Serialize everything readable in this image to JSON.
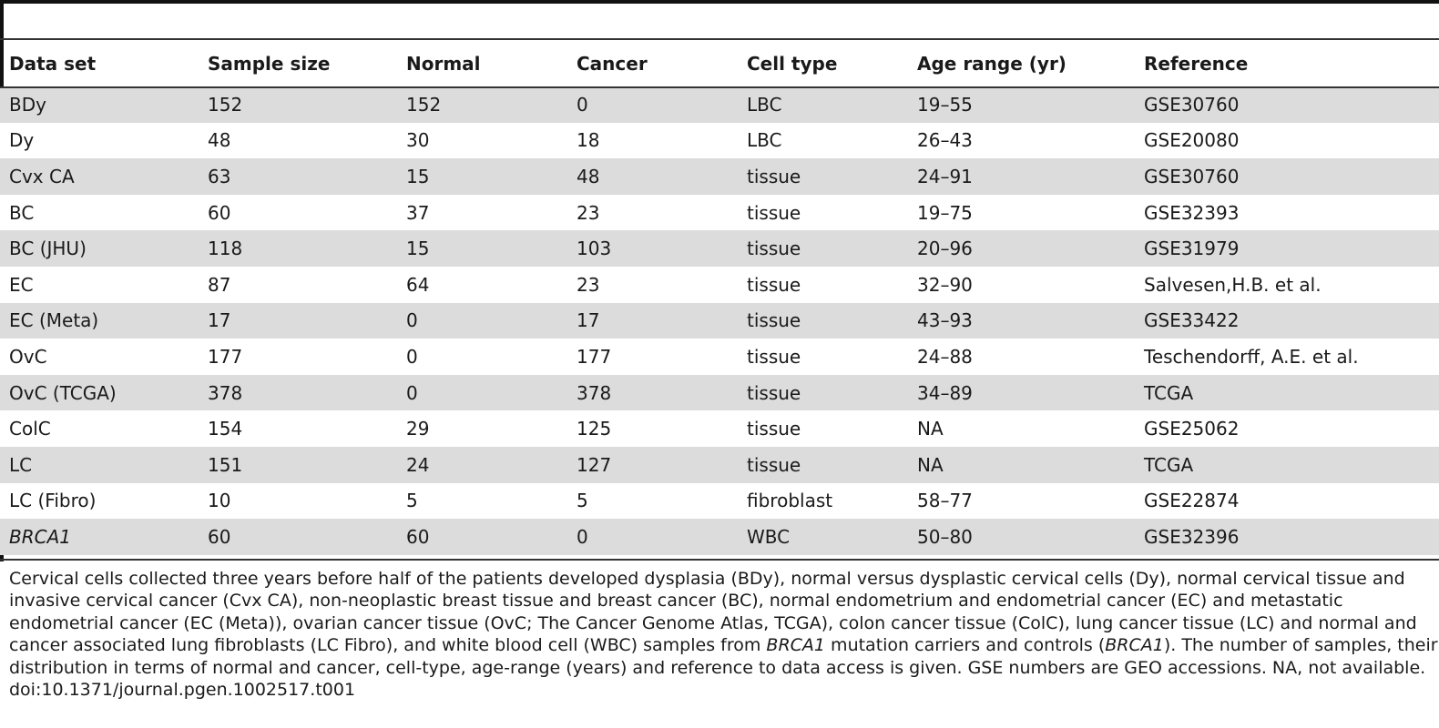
{
  "table": {
    "headers": [
      "Data set",
      "Sample size",
      "Normal",
      "Cancer",
      "Cell type",
      "Age range (yr)",
      "Reference"
    ],
    "rows": [
      {
        "data_set": "BDy",
        "sample_size": "152",
        "normal": "152",
        "cancer": "0",
        "cell_type": "LBC",
        "age_range": "19–55",
        "reference": "GSE30760"
      },
      {
        "data_set": "Dy",
        "sample_size": "48",
        "normal": "30",
        "cancer": "18",
        "cell_type": "LBC",
        "age_range": "26–43",
        "reference": "GSE20080"
      },
      {
        "data_set": "Cvx CA",
        "sample_size": "63",
        "normal": "15",
        "cancer": "48",
        "cell_type": "tissue",
        "age_range": "24–91",
        "reference": "GSE30760"
      },
      {
        "data_set": "BC",
        "sample_size": "60",
        "normal": "37",
        "cancer": "23",
        "cell_type": "tissue",
        "age_range": "19–75",
        "reference": "GSE32393"
      },
      {
        "data_set": "BC (JHU)",
        "sample_size": "118",
        "normal": "15",
        "cancer": "103",
        "cell_type": "tissue",
        "age_range": "20–96",
        "reference": "GSE31979"
      },
      {
        "data_set": "EC",
        "sample_size": "87",
        "normal": "64",
        "cancer": "23",
        "cell_type": "tissue",
        "age_range": "32–90",
        "reference": "Salvesen,H.B. et al."
      },
      {
        "data_set": "EC (Meta)",
        "sample_size": "17",
        "normal": "0",
        "cancer": "17",
        "cell_type": "tissue",
        "age_range": "43–93",
        "reference": "GSE33422"
      },
      {
        "data_set": "OvC",
        "sample_size": "177",
        "normal": "0",
        "cancer": "177",
        "cell_type": "tissue",
        "age_range": "24–88",
        "reference": "Teschendorff, A.E. et al."
      },
      {
        "data_set": "OvC (TCGA)",
        "sample_size": "378",
        "normal": "0",
        "cancer": "378",
        "cell_type": "tissue",
        "age_range": "34–89",
        "reference": "TCGA"
      },
      {
        "data_set": "ColC",
        "sample_size": "154",
        "normal": "29",
        "cancer": "125",
        "cell_type": "tissue",
        "age_range": "NA",
        "reference": "GSE25062"
      },
      {
        "data_set": "LC",
        "sample_size": "151",
        "normal": "24",
        "cancer": "127",
        "cell_type": "tissue",
        "age_range": "NA",
        "reference": "TCGA"
      },
      {
        "data_set": "LC (Fibro)",
        "sample_size": "10",
        "normal": "5",
        "cancer": "5",
        "cell_type": "fibroblast",
        "age_range": "58–77",
        "reference": "GSE22874"
      },
      {
        "data_set": "BRCA1",
        "sample_size": "60",
        "normal": "60",
        "cancer": "0",
        "cell_type": "WBC",
        "age_range": "50–80",
        "reference": "GSE32396"
      }
    ]
  },
  "caption": {
    "part1": "Cervical cells collected three years before half of the patients developed dysplasia (BDy), normal versus dysplastic cervical cells (Dy), normal cervical tissue and invasive cervical cancer (Cvx CA), non-neoplastic breast tissue and breast cancer (BC), normal endometrium and endometrial cancer (EC) and metastatic endometrial cancer (EC (Meta)), ovarian cancer tissue (OvC; The Cancer Genome Atlas, TCGA), colon cancer tissue (ColC), lung cancer tissue (LC) and normal and cancer associated lung fibroblasts (LC Fibro), and white blood cell (WBC) samples from ",
    "italic1": "BRCA1",
    "part2": " mutation carriers and controls (",
    "italic2": "BRCA1",
    "part3": "). The number of samples, their distribution in terms of normal and cancer, cell-type, age-range (years) and reference to data access is given. GSE numbers are GEO accessions. NA, not available.",
    "doi": "doi:10.1371/journal.pgen.1002517.t001"
  }
}
